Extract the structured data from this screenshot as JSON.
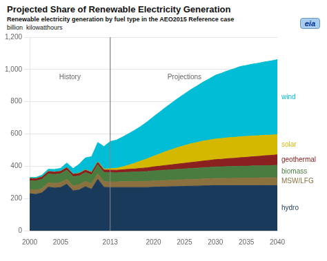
{
  "chart_data": {
    "type": "area",
    "stacked": true,
    "title": "Projected Share of Renewable Electricity Generation",
    "subtitle": "Renewable electricity generation by fuel type in the AEO2015  Reference case",
    "ylabel": "billion  kilowatthours",
    "logo": "eia",
    "x": [
      2000,
      2001,
      2002,
      2003,
      2004,
      2005,
      2006,
      2007,
      2008,
      2009,
      2010,
      2011,
      2012,
      2013,
      2014,
      2015,
      2016,
      2017,
      2018,
      2019,
      2020,
      2021,
      2022,
      2023,
      2024,
      2025,
      2026,
      2027,
      2028,
      2029,
      2030,
      2031,
      2032,
      2033,
      2034,
      2035,
      2036,
      2037,
      2038,
      2039,
      2040
    ],
    "xlim": [
      2000,
      2040
    ],
    "xticks": [
      2000,
      2005,
      2013,
      2020,
      2025,
      2030,
      2035,
      2040
    ],
    "ylim": [
      0,
      1200
    ],
    "yticks": [
      0,
      200,
      400,
      600,
      800,
      {
        "value": 1000,
        "label": "1,000"
      },
      {
        "value": 1200,
        "label": "1,200"
      }
    ],
    "grid": "y",
    "legend": "right",
    "vlines": [
      2013
    ],
    "annotations": [
      {
        "text": "History",
        "x": 2006.5,
        "y": 930
      },
      {
        "text": "Projections",
        "x": 2025,
        "y": 930
      }
    ],
    "series": [
      {
        "name": "hydro",
        "color": "#1a3a5c",
        "values": [
          230,
          225,
          235,
          270,
          265,
          268,
          289,
          247,
          253,
          273,
          257,
          319,
          269,
          268,
          268,
          268,
          268,
          268,
          268,
          268,
          270,
          271,
          272,
          273,
          274,
          275,
          276,
          277,
          278,
          279,
          280,
          280,
          280,
          280,
          280,
          280,
          280,
          280,
          280,
          280,
          280
        ]
      },
      {
        "name": "MSW/LFG",
        "color": "#8b7040",
        "values": [
          25,
          26,
          27,
          28,
          29,
          30,
          30,
          31,
          32,
          33,
          34,
          34,
          35,
          35,
          35,
          36,
          37,
          37,
          38,
          38,
          39,
          39,
          40,
          40,
          41,
          41,
          42,
          42,
          43,
          43,
          44,
          44,
          45,
          45,
          46,
          46,
          47,
          47,
          48,
          48,
          49
        ]
      },
      {
        "name": "biomass",
        "color": "#4a7c3f",
        "values": [
          55,
          57,
          57,
          55,
          55,
          56,
          57,
          57,
          55,
          55,
          55,
          56,
          57,
          57,
          56,
          57,
          58,
          59,
          60,
          61,
          62,
          63,
          64,
          65,
          66,
          67,
          68,
          69,
          70,
          71,
          72,
          72,
          73,
          73,
          74,
          74,
          75,
          75,
          76,
          76,
          77
        ]
      },
      {
        "name": "geothermal",
        "color": "#8b2020",
        "values": [
          14,
          14,
          14,
          14,
          14,
          14,
          15,
          15,
          15,
          15,
          15,
          15,
          16,
          16,
          16,
          17,
          18,
          19,
          21,
          23,
          25,
          27,
          29,
          31,
          33,
          35,
          37,
          39,
          41,
          43,
          45,
          47,
          49,
          51,
          53,
          55,
          57,
          59,
          61,
          63,
          65
        ]
      },
      {
        "name": "solar",
        "color": "#d4b800",
        "values": [
          1,
          1,
          1,
          1,
          1,
          1,
          1,
          1,
          2,
          2,
          2,
          3,
          5,
          9,
          12,
          18,
          26,
          36,
          46,
          56,
          66,
          76,
          86,
          95,
          103,
          110,
          116,
          120,
          124,
          126,
          128,
          129,
          130,
          130,
          130,
          130,
          129,
          128,
          127,
          126,
          125
        ]
      },
      {
        "name": "wind",
        "color": "#00bcd4",
        "values": [
          5,
          7,
          11,
          13,
          16,
          18,
          28,
          34,
          55,
          74,
          96,
          120,
          140,
          168,
          175,
          185,
          195,
          205,
          215,
          230,
          245,
          260,
          275,
          290,
          305,
          320,
          335,
          350,
          365,
          380,
          395,
          405,
          415,
          425,
          435,
          440,
          445,
          450,
          455,
          460,
          465
        ]
      }
    ]
  }
}
